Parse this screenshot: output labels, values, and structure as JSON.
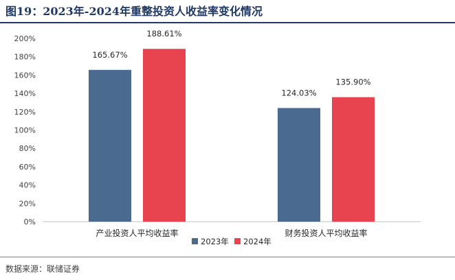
{
  "figure": {
    "title": "图19：2023年-2024年重整投资人收益率变化情况",
    "source_label": "数据来源：",
    "source_value": "联储证券"
  },
  "chart_data": {
    "type": "bar",
    "categories": [
      "产业投资人平均收益率",
      "财务投资人平均收益率"
    ],
    "series": [
      {
        "name": "2023年",
        "values": [
          165.67,
          124.03
        ],
        "labels": [
          "165.67%",
          "124.03%"
        ],
        "color": "#4a6b8f"
      },
      {
        "name": "2024年",
        "values": [
          188.61,
          135.9
        ],
        "labels": [
          "188.61%",
          "135.90%"
        ],
        "color": "#e8444f"
      }
    ],
    "ylim": [
      0,
      200
    ],
    "yticks": [
      0,
      20,
      40,
      60,
      80,
      100,
      120,
      140,
      160,
      180,
      200
    ],
    "ytick_labels": [
      "0%",
      "20%",
      "40%",
      "60%",
      "80%",
      "100%",
      "120%",
      "140%",
      "160%",
      "180%",
      "200%"
    ],
    "grid": false,
    "legend_position": "bottom-center"
  }
}
